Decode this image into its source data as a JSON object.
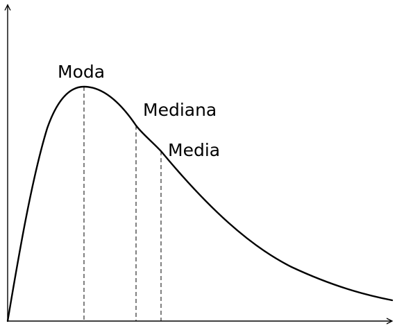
{
  "labels": {
    "mode": "Moda",
    "median": "Mediana",
    "mean": "Media"
  },
  "colors": {
    "curve": "#000000",
    "axes": "#000000",
    "markers": "#000000",
    "background": "#ffffff"
  }
}
